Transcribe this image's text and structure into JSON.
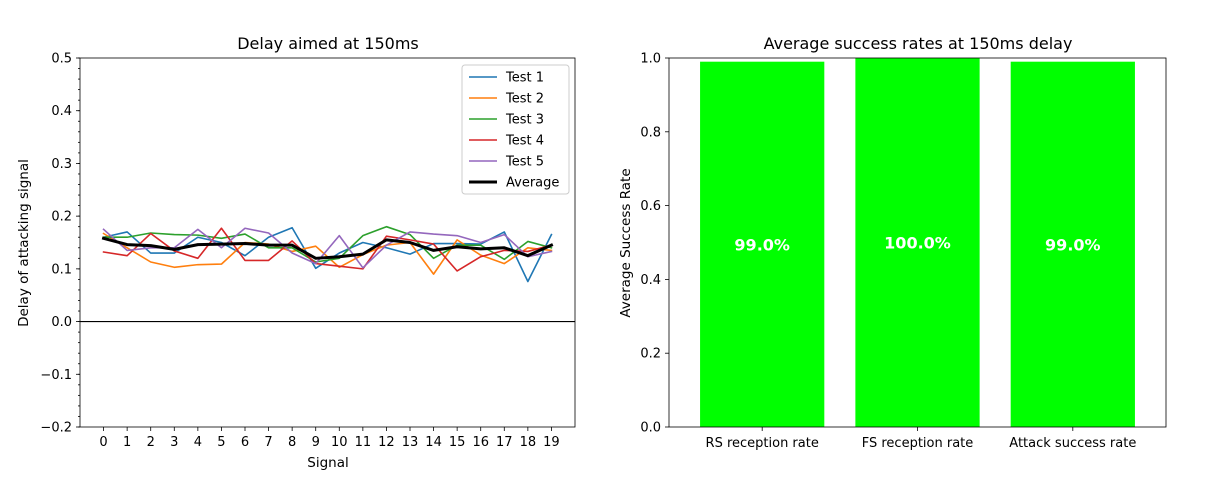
{
  "chart_data": [
    {
      "type": "line",
      "title": "Delay aimed at 150ms",
      "xlabel": "Signal",
      "ylabel": "Delay of attacking signal",
      "x": [
        0,
        1,
        2,
        3,
        4,
        5,
        6,
        7,
        8,
        9,
        10,
        11,
        12,
        13,
        14,
        15,
        16,
        17,
        18,
        19
      ],
      "xlim": [
        -1,
        20
      ],
      "ylim": [
        -0.2,
        0.5
      ],
      "yticks": [
        "0.5",
        "0.4",
        "0.3",
        "0.2",
        "0.1",
        "0.0",
        "−0.1",
        "−0.2"
      ],
      "reference_line_y": 0.0,
      "legend_position": "top-right",
      "series": [
        {
          "name": "Test 1",
          "color": "#1f77b4",
          "values": [
            0.16,
            0.17,
            0.13,
            0.13,
            0.16,
            0.15,
            0.125,
            0.16,
            0.178,
            0.101,
            0.13,
            0.15,
            0.14,
            0.128,
            0.148,
            0.148,
            0.147,
            0.17,
            0.076,
            0.165
          ]
        },
        {
          "name": "Test 2",
          "color": "#ff7f0e",
          "values": [
            0.167,
            0.14,
            0.113,
            0.103,
            0.108,
            0.109,
            0.15,
            0.147,
            0.133,
            0.143,
            0.103,
            0.127,
            0.145,
            0.15,
            0.09,
            0.155,
            0.126,
            0.11,
            0.14,
            0.135
          ]
        },
        {
          "name": "Test 3",
          "color": "#2ca02c",
          "values": [
            0.16,
            0.16,
            0.168,
            0.165,
            0.164,
            0.158,
            0.166,
            0.14,
            0.14,
            0.113,
            0.12,
            0.163,
            0.18,
            0.165,
            0.12,
            0.145,
            0.145,
            0.118,
            0.152,
            0.14
          ]
        },
        {
          "name": "Test 4",
          "color": "#d62728",
          "values": [
            0.132,
            0.125,
            0.167,
            0.134,
            0.12,
            0.177,
            0.116,
            0.116,
            0.153,
            0.11,
            0.105,
            0.1,
            0.162,
            0.155,
            0.147,
            0.096,
            0.123,
            0.135,
            0.133,
            0.145
          ]
        },
        {
          "name": "Test 5",
          "color": "#9467bd",
          "values": [
            0.175,
            0.135,
            0.14,
            0.14,
            0.175,
            0.14,
            0.177,
            0.168,
            0.13,
            0.11,
            0.163,
            0.102,
            0.145,
            0.17,
            0.166,
            0.163,
            0.15,
            0.165,
            0.123,
            0.133
          ]
        },
        {
          "name": "Average",
          "color": "#000000",
          "values": [
            0.158,
            0.146,
            0.144,
            0.137,
            0.146,
            0.147,
            0.148,
            0.145,
            0.145,
            0.12,
            0.123,
            0.128,
            0.155,
            0.15,
            0.135,
            0.142,
            0.138,
            0.14,
            0.125,
            0.145
          ]
        }
      ]
    },
    {
      "type": "bar",
      "title": "Average success rates at 150ms delay",
      "xlabel": "",
      "ylabel": "Average Success Rate",
      "categories": [
        "RS reception rate",
        "FS reception rate",
        "Attack success rate"
      ],
      "values": [
        0.99,
        1.0,
        0.99
      ],
      "data_labels": [
        "99.0%",
        "100.0%",
        "99.0%"
      ],
      "ylim": [
        0.0,
        1.0
      ],
      "yticks": [
        "0.0",
        "0.2",
        "0.4",
        "0.6",
        "0.8",
        "1.0"
      ],
      "bar_color": "#00ff00"
    }
  ]
}
